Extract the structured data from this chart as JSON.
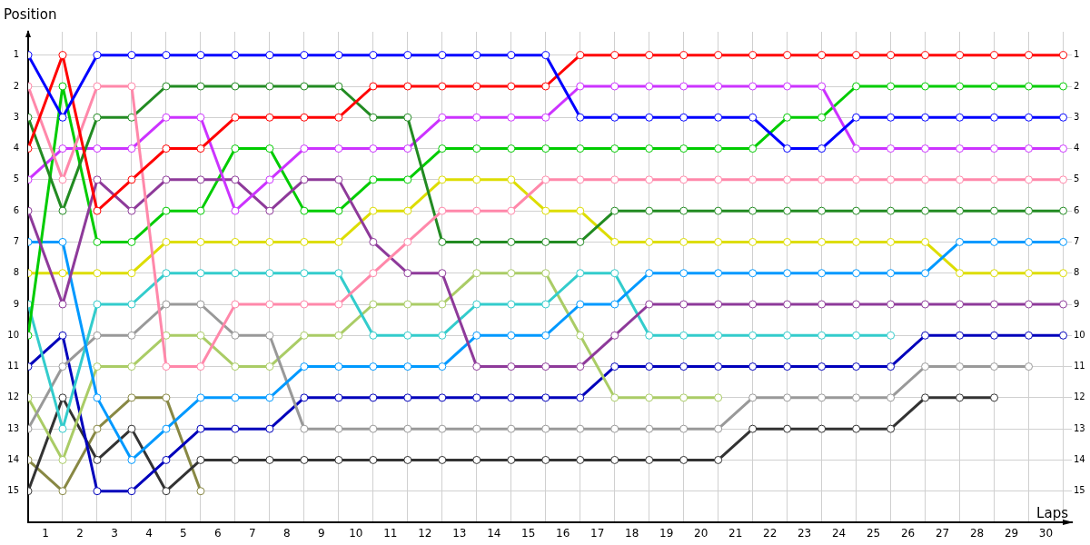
{
  "chart_data": {
    "type": "line",
    "xlabel": "Laps",
    "ylabel": "Position",
    "x": [
      0,
      1,
      2,
      3,
      4,
      5,
      6,
      7,
      8,
      9,
      10,
      11,
      12,
      13,
      14,
      15,
      16,
      17,
      18,
      19,
      20,
      21,
      22,
      23,
      24,
      25,
      26,
      27,
      28,
      29,
      30
    ],
    "xlim": [
      0,
      30.25
    ],
    "xticks": [
      {
        "value": 0,
        "label": null
      },
      {
        "value": 0.5,
        "label": "1"
      },
      {
        "value": 1,
        "label": null
      },
      {
        "value": 1.5,
        "label": "2"
      },
      {
        "value": 2,
        "label": null
      },
      {
        "value": 2.5,
        "label": "3"
      },
      {
        "value": 3,
        "label": null
      },
      {
        "value": 3.5,
        "label": "4"
      },
      {
        "value": 4,
        "label": null
      },
      {
        "value": 4.5,
        "label": "5"
      },
      {
        "value": 5,
        "label": null
      },
      {
        "value": 5.5,
        "label": "6"
      },
      {
        "value": 6,
        "label": null
      },
      {
        "value": 6.5,
        "label": "7"
      },
      {
        "value": 7,
        "label": null
      },
      {
        "value": 7.5,
        "label": "8"
      },
      {
        "value": 8,
        "label": null
      },
      {
        "value": 8.5,
        "label": "9"
      },
      {
        "value": 9,
        "label": null
      },
      {
        "value": 9.5,
        "label": "10"
      },
      {
        "value": 10,
        "label": null
      },
      {
        "value": 10.5,
        "label": "11"
      },
      {
        "value": 11,
        "label": null
      },
      {
        "value": 11.5,
        "label": "12"
      },
      {
        "value": 12,
        "label": null
      },
      {
        "value": 12.5,
        "label": "13"
      },
      {
        "value": 13,
        "label": null
      },
      {
        "value": 13.5,
        "label": "14"
      },
      {
        "value": 14,
        "label": null
      },
      {
        "value": 14.5,
        "label": "15"
      },
      {
        "value": 15,
        "label": null
      },
      {
        "value": 15.5,
        "label": "16"
      },
      {
        "value": 16,
        "label": null
      },
      {
        "value": 16.5,
        "label": "17"
      },
      {
        "value": 17,
        "label": null
      },
      {
        "value": 17.5,
        "label": "18"
      },
      {
        "value": 18,
        "label": null
      },
      {
        "value": 18.5,
        "label": "19"
      },
      {
        "value": 19,
        "label": null
      },
      {
        "value": 19.5,
        "label": "20"
      },
      {
        "value": 20,
        "label": null
      },
      {
        "value": 20.5,
        "label": "21"
      },
      {
        "value": 21,
        "label": null
      },
      {
        "value": 21.5,
        "label": "22"
      },
      {
        "value": 22,
        "label": null
      },
      {
        "value": 22.5,
        "label": "23"
      },
      {
        "value": 23,
        "label": null
      },
      {
        "value": 23.5,
        "label": "24"
      },
      {
        "value": 24,
        "label": null
      },
      {
        "value": 24.5,
        "label": "25"
      },
      {
        "value": 25,
        "label": null
      },
      {
        "value": 25.5,
        "label": "26"
      },
      {
        "value": 26,
        "label": null
      },
      {
        "value": 26.5,
        "label": "27"
      },
      {
        "value": 27,
        "label": null
      },
      {
        "value": 27.5,
        "label": "28"
      },
      {
        "value": 28,
        "label": null
      },
      {
        "value": 28.5,
        "label": "29"
      },
      {
        "value": 29,
        "label": null
      },
      {
        "value": 29.5,
        "label": "30"
      },
      {
        "value": 30,
        "label": null
      }
    ],
    "ylim": [
      16,
      0.25
    ],
    "yticks": [
      1,
      2,
      3,
      4,
      5,
      6,
      7,
      8,
      9,
      10,
      11,
      12,
      13,
      14,
      15
    ],
    "y2lim": [
      16,
      0.25
    ],
    "y2ticks": [
      1,
      2,
      3,
      4,
      5,
      6,
      7,
      8,
      9,
      10,
      11,
      12,
      13,
      14,
      15
    ],
    "grid": true,
    "legend": false,
    "marker": "circle",
    "line_style": "solid",
    "series": [
      {
        "color": "#0000ff",
        "values": [
          1,
          3,
          1,
          1,
          1,
          1,
          1,
          1,
          1,
          1,
          1,
          1,
          1,
          1,
          1,
          1,
          3,
          3,
          3,
          3,
          3,
          3,
          4,
          4,
          3,
          3,
          3,
          3,
          3,
          3,
          3
        ]
      },
      {
        "color": "#ff0000",
        "values": [
          4,
          1,
          6,
          5,
          4,
          4,
          3,
          3,
          3,
          3,
          2,
          2,
          2,
          2,
          2,
          2,
          1,
          1,
          1,
          1,
          1,
          1,
          1,
          1,
          1,
          1,
          1,
          1,
          1,
          1,
          1
        ]
      },
      {
        "color": "#ff88aa",
        "values": [
          2,
          5,
          2,
          2,
          11,
          11,
          9,
          9,
          9,
          9,
          8,
          7,
          6,
          6,
          6,
          5,
          5,
          5,
          5,
          5,
          5,
          5,
          5,
          5,
          5,
          5,
          5,
          5,
          5,
          5,
          5
        ]
      },
      {
        "color": "#228b22",
        "values": [
          3,
          6,
          3,
          3,
          2,
          2,
          2,
          2,
          2,
          2,
          3,
          3,
          7,
          7,
          7,
          7,
          7,
          6,
          6,
          6,
          6,
          6,
          6,
          6,
          6,
          6,
          6,
          6,
          6,
          6,
          6
        ]
      },
      {
        "color": "#cc33ff",
        "values": [
          5,
          4,
          4,
          4,
          3,
          3,
          6,
          5,
          4,
          4,
          4,
          4,
          3,
          3,
          3,
          3,
          2,
          2,
          2,
          2,
          2,
          2,
          2,
          2,
          4,
          4,
          4,
          4,
          4,
          4,
          4
        ]
      },
      {
        "color": "#8e3a9a",
        "values": [
          6,
          9,
          5,
          6,
          5,
          5,
          5,
          6,
          5,
          5,
          7,
          8,
          8,
          11,
          11,
          11,
          11,
          10,
          9,
          9,
          9,
          9,
          9,
          9,
          9,
          9,
          9,
          9,
          9,
          9,
          9
        ]
      },
      {
        "color": "#00cc00",
        "values": [
          10,
          2,
          7,
          7,
          6,
          6,
          4,
          4,
          6,
          6,
          5,
          5,
          4,
          4,
          4,
          4,
          4,
          4,
          4,
          4,
          4,
          4,
          3,
          3,
          2,
          2,
          2,
          2,
          2,
          2,
          2
        ]
      },
      {
        "color": "#0099ff",
        "values": [
          7,
          7,
          12,
          14,
          13,
          12,
          12,
          12,
          11,
          11,
          11,
          11,
          11,
          10,
          10,
          10,
          9,
          9,
          8,
          8,
          8,
          8,
          8,
          8,
          8,
          8,
          8,
          7,
          7,
          7,
          7
        ]
      },
      {
        "color": "#dddd00",
        "values": [
          8,
          8,
          8,
          8,
          7,
          7,
          7,
          7,
          7,
          7,
          6,
          6,
          5,
          5,
          5,
          6,
          6,
          7,
          7,
          7,
          7,
          7,
          7,
          7,
          7,
          7,
          7,
          8,
          8,
          8,
          8
        ]
      },
      {
        "color": "#33cccc",
        "values": [
          9,
          13,
          9,
          9,
          8,
          8,
          8,
          8,
          8,
          8,
          10,
          10,
          10,
          9,
          9,
          9,
          8,
          8,
          10,
          10,
          10,
          10,
          10,
          10,
          10,
          10,
          null,
          null,
          null,
          null,
          null
        ]
      },
      {
        "color": "#999999",
        "values": [
          13,
          11,
          10,
          10,
          9,
          9,
          10,
          10,
          13,
          13,
          13,
          13,
          13,
          13,
          13,
          13,
          13,
          13,
          13,
          13,
          13,
          12,
          12,
          12,
          12,
          12,
          11,
          11,
          11,
          11,
          null
        ]
      },
      {
        "color": "#aacc66",
        "values": [
          12,
          14,
          11,
          11,
          10,
          10,
          11,
          11,
          10,
          10,
          9,
          9,
          9,
          8,
          8,
          8,
          10,
          12,
          12,
          12,
          12,
          null,
          null,
          null,
          null,
          null,
          null,
          null,
          null,
          null,
          null
        ]
      },
      {
        "color": "#0000bb",
        "values": [
          11,
          10,
          15,
          15,
          14,
          13,
          13,
          13,
          12,
          12,
          12,
          12,
          12,
          12,
          12,
          12,
          12,
          11,
          11,
          11,
          11,
          11,
          11,
          11,
          11,
          11,
          10,
          10,
          10,
          10,
          10
        ]
      },
      {
        "color": "#333333",
        "values": [
          15,
          12,
          14,
          13,
          15,
          14,
          14,
          14,
          14,
          14,
          14,
          14,
          14,
          14,
          14,
          14,
          14,
          14,
          14,
          14,
          14,
          13,
          13,
          13,
          13,
          13,
          12,
          12,
          12,
          null,
          null
        ]
      },
      {
        "color": "#888844",
        "values": [
          14,
          15,
          13,
          12,
          12,
          15,
          null,
          null,
          null,
          null,
          null,
          null,
          null,
          null,
          null,
          null,
          null,
          null,
          null,
          null,
          null,
          null,
          null,
          null,
          null,
          null,
          null,
          null,
          null,
          null,
          null
        ]
      }
    ]
  }
}
